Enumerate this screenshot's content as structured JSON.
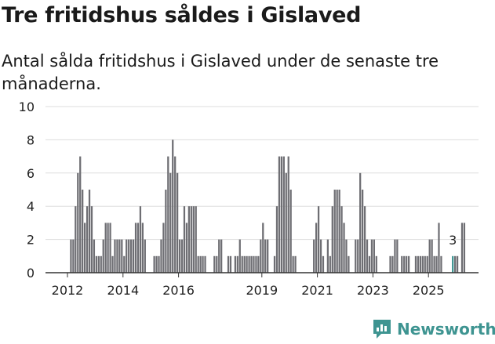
{
  "title": "Tre fritidshus såldes i Gislaved",
  "subtitle": "Antal sålda fritidshus i Gislaved under de senaste tre månaderna.",
  "brand": "Newsworthy",
  "colors": {
    "bar": "#6e6e73",
    "highlight": "#3e9491",
    "grid": "#dddddd",
    "axis": "#333333"
  },
  "chart_data": {
    "type": "bar",
    "title": "Tre fritidshus såldes i Gislaved",
    "xlabel": "",
    "ylabel": "",
    "ylim": [
      0,
      10
    ],
    "yticks": [
      "0",
      "2",
      "4",
      "6",
      "8",
      "10"
    ],
    "xticks": [
      {
        "label": "2012",
        "index": 0
      },
      {
        "label": "2014",
        "index": 24
      },
      {
        "label": "2016",
        "index": 48
      },
      {
        "label": "2019",
        "index": 84
      },
      {
        "label": "2021",
        "index": 108
      },
      {
        "label": "2023",
        "index": 132
      },
      {
        "label": "2025",
        "index": 156
      }
    ],
    "categories_start": "2012-01",
    "values": [
      0,
      2,
      2,
      4,
      6,
      7,
      5,
      3,
      4,
      5,
      4,
      2,
      1,
      1,
      1,
      2,
      3,
      3,
      3,
      1,
      2,
      2,
      2,
      2,
      1,
      2,
      2,
      2,
      2,
      3,
      3,
      4,
      3,
      2,
      0,
      0,
      0,
      1,
      1,
      1,
      2,
      3,
      5,
      7,
      6,
      8,
      7,
      6,
      2,
      2,
      4,
      3,
      4,
      4,
      4,
      4,
      1,
      1,
      1,
      1,
      0,
      0,
      0,
      1,
      1,
      2,
      2,
      0,
      0,
      1,
      1,
      0,
      1,
      1,
      2,
      1,
      1,
      1,
      1,
      1,
      1,
      1,
      1,
      2,
      3,
      2,
      2,
      0,
      0,
      1,
      4,
      7,
      7,
      7,
      6,
      7,
      5,
      1,
      1,
      0,
      0,
      0,
      0,
      0,
      0,
      0,
      2,
      3,
      4,
      2,
      1,
      0,
      2,
      1,
      4,
      5,
      5,
      5,
      4,
      3,
      2,
      1,
      0,
      0,
      2,
      2,
      6,
      5,
      4,
      2,
      1,
      2,
      2,
      1,
      0,
      0,
      0,
      0,
      0,
      1,
      1,
      2,
      2,
      0,
      1,
      1,
      1,
      1,
      0,
      0,
      1,
      1,
      1,
      1,
      1,
      1,
      2,
      2,
      1,
      1,
      3,
      1,
      0,
      0,
      0,
      0,
      1,
      1,
      1,
      0,
      3,
      3
    ],
    "highlight_index": 166,
    "highlight_label": "3"
  }
}
